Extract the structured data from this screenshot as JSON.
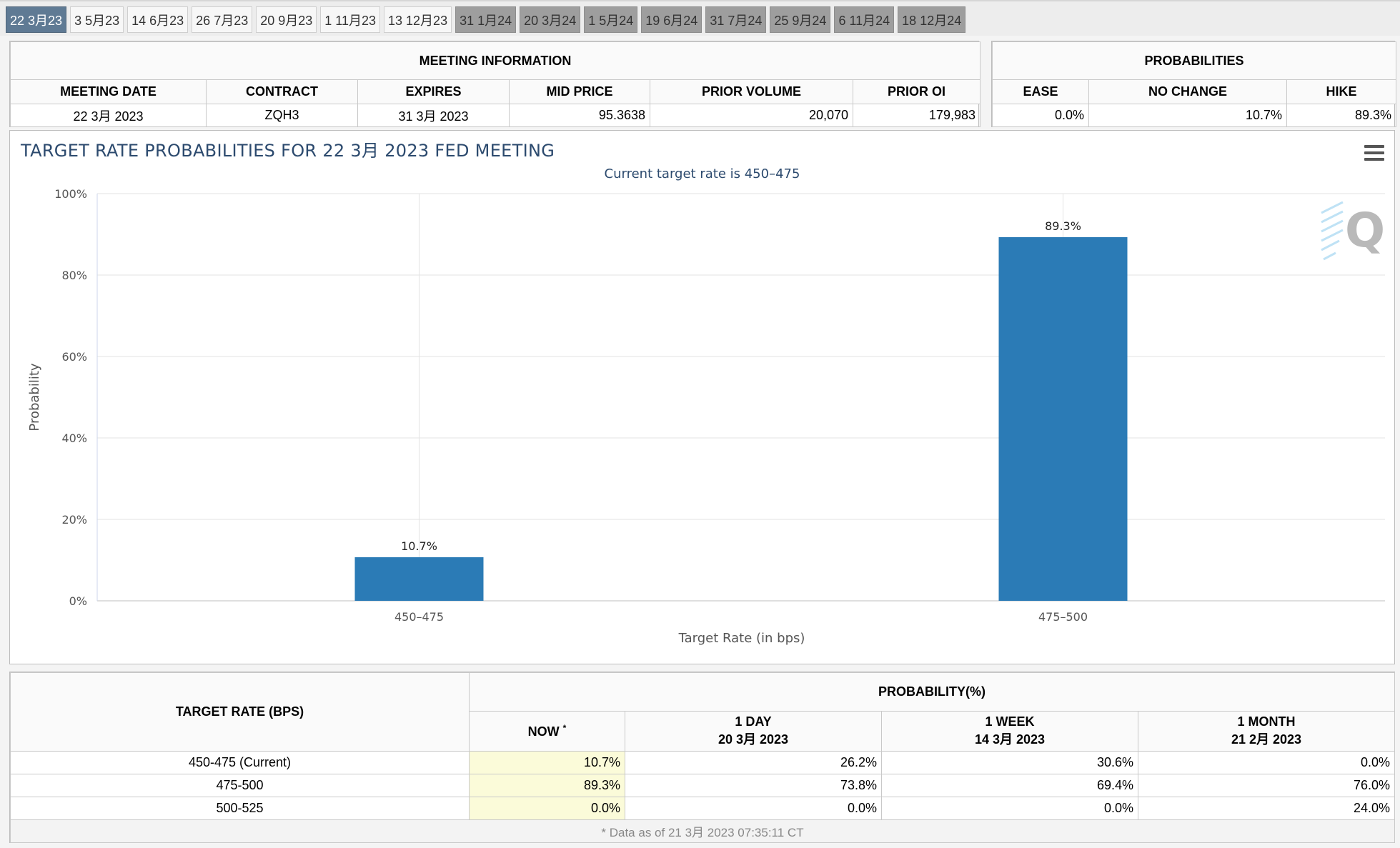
{
  "tabs": [
    {
      "label": "22 3月23",
      "state": "active"
    },
    {
      "label": "3 5月23",
      "state": "normal"
    },
    {
      "label": "14 6月23",
      "state": "normal"
    },
    {
      "label": "26 7月23",
      "state": "normal"
    },
    {
      "label": "20 9月23",
      "state": "normal"
    },
    {
      "label": "1 11月23",
      "state": "normal"
    },
    {
      "label": "13 12月23",
      "state": "normal"
    },
    {
      "label": "31 1月24",
      "state": "disabled"
    },
    {
      "label": "20 3月24",
      "state": "disabled"
    },
    {
      "label": "1 5月24",
      "state": "disabled"
    },
    {
      "label": "19 6月24",
      "state": "disabled"
    },
    {
      "label": "31 7月24",
      "state": "disabled"
    },
    {
      "label": "25 9月24",
      "state": "disabled"
    },
    {
      "label": "6 11月24",
      "state": "disabled"
    },
    {
      "label": "18 12月24",
      "state": "disabled"
    }
  ],
  "meeting": {
    "heading": "MEETING INFORMATION",
    "columns": [
      "MEETING DATE",
      "CONTRACT",
      "EXPIRES",
      "MID PRICE",
      "PRIOR VOLUME",
      "PRIOR OI"
    ],
    "values": [
      "22 3月 2023",
      "ZQH3",
      "31 3月 2023",
      "95.3638",
      "20,070",
      "179,983"
    ]
  },
  "probabilities": {
    "heading": "PROBABILITIES",
    "columns": [
      "EASE",
      "NO CHANGE",
      "HIKE"
    ],
    "values": [
      "0.0%",
      "10.7%",
      "89.3%"
    ]
  },
  "chart_data": {
    "type": "bar",
    "title": "TARGET RATE PROBABILITIES FOR 22 3月 2023 FED MEETING",
    "subtitle": "Current target rate is 450–475",
    "categories": [
      "450–475",
      "475–500"
    ],
    "values": [
      10.7,
      89.3
    ],
    "value_labels": [
      "10.7%",
      "89.3%"
    ],
    "xlabel": "Target Rate (in bps)",
    "ylabel": "Probability",
    "ylim": [
      0,
      100
    ],
    "yticks": [
      "0%",
      "20%",
      "40%",
      "60%",
      "80%",
      "100%"
    ],
    "grid": true,
    "bar_color": "#2b7bb6"
  },
  "prob_table": {
    "rate_header": "TARGET RATE (BPS)",
    "prob_header": "PROBABILITY(%)",
    "now_label": "NOW",
    "now_mark": "*",
    "day_label": "1 DAY",
    "day_date": "20 3月 2023",
    "week_label": "1 WEEK",
    "week_date": "14 3月 2023",
    "month_label": "1 MONTH",
    "month_date": "21 2月 2023",
    "rows": [
      {
        "rate": "450-475 (Current)",
        "now": "10.7%",
        "day": "26.2%",
        "week": "30.6%",
        "month": "0.0%"
      },
      {
        "rate": "475-500",
        "now": "89.3%",
        "day": "73.8%",
        "week": "69.4%",
        "month": "76.0%"
      },
      {
        "rate": "500-525",
        "now": "0.0%",
        "day": "0.0%",
        "week": "0.0%",
        "month": "24.0%"
      }
    ],
    "footnote": "* Data as of 21 3月 2023 07:35:11 CT"
  }
}
